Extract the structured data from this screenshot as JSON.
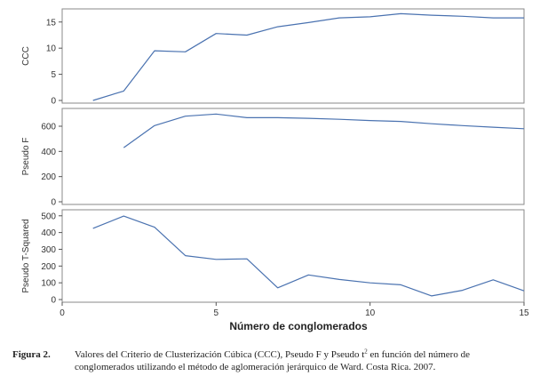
{
  "chart_data": {
    "type": "line",
    "layout": "three vertically stacked panels sharing x axis",
    "x_axis": {
      "label": "Número de conglomerados",
      "range": [
        0,
        15
      ],
      "ticks": [
        0,
        5,
        10,
        15
      ]
    },
    "line_color": "#4a72b0",
    "panels": [
      {
        "id": "ccc",
        "ylabel": "CCC",
        "ylim": [
          0,
          17
        ],
        "yticks": [
          0,
          5,
          10,
          15
        ],
        "x": [
          1,
          2,
          3,
          4,
          5,
          6,
          7,
          8,
          9,
          10,
          11,
          12,
          13,
          14,
          15
        ],
        "y": [
          0.0,
          1.8,
          9.5,
          9.3,
          12.8,
          12.5,
          14.1,
          14.9,
          15.8,
          16.0,
          16.6,
          16.3,
          16.1,
          15.8,
          15.8
        ]
      },
      {
        "id": "pseudo-f",
        "ylabel": "Pseudo F",
        "ylim": [
          0,
          720
        ],
        "yticks": [
          0,
          200,
          400,
          600
        ],
        "x": [
          2,
          3,
          4,
          5,
          6,
          7,
          8,
          9,
          10,
          11,
          12,
          13,
          14,
          15
        ],
        "y": [
          430,
          605,
          680,
          697,
          668,
          668,
          663,
          655,
          645,
          638,
          620,
          605,
          592,
          580
        ]
      },
      {
        "id": "pseudo-t2",
        "ylabel": "Pseudo T-Squared",
        "ylim": [
          0,
          520
        ],
        "yticks": [
          0,
          100,
          200,
          300,
          400,
          500
        ],
        "x": [
          1,
          2,
          3,
          4,
          5,
          6,
          7,
          8,
          9,
          10,
          11,
          12,
          13,
          14,
          15
        ],
        "y": [
          425,
          498,
          432,
          262,
          240,
          243,
          70,
          147,
          120,
          100,
          88,
          22,
          55,
          118,
          52
        ]
      }
    ]
  },
  "caption": {
    "label": "Figura 2.",
    "text_part1": "Valores del Criterio de Clusterización Cúbica (CCC), Pseudo F y Pseudo t",
    "superscript": "2",
    "text_part2": " en función del número de conglomerados utilizando el método de aglomeración jerárquico de Ward. Costa Rica. 2007."
  }
}
